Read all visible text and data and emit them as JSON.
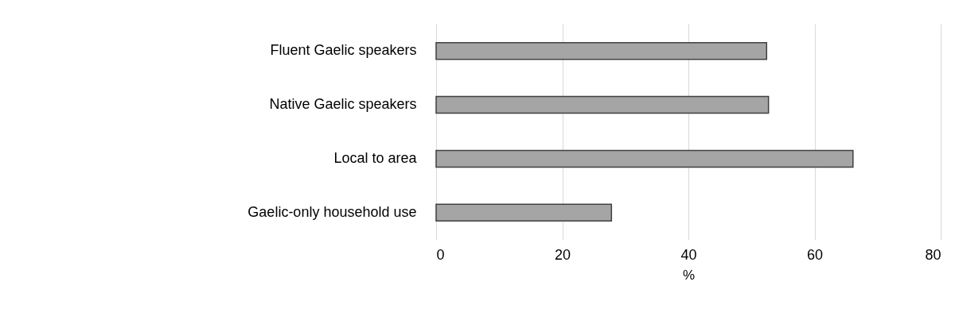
{
  "chart_data": {
    "type": "bar",
    "orientation": "horizontal",
    "xlabel": "%",
    "categories": [
      "Fluent Gaelic speakers",
      "Native Gaelic speakers",
      "Local to area",
      "Gaelic-only household use"
    ],
    "values": [
      52.4,
      52.7,
      66.1,
      27.8
    ],
    "color": "#a5a5a5",
    "xlim": [
      0,
      80
    ],
    "xticks": [
      0,
      20,
      40,
      60,
      80
    ],
    "grid": "x"
  }
}
